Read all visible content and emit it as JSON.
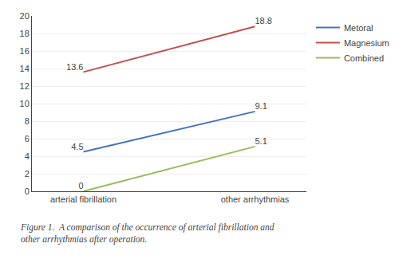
{
  "chart_data": {
    "type": "line",
    "title": "Figure 1.  A comparison of the occurrence of arterial fibrillation and\nother arrhythmias after operation.",
    "categories": [
      "arterial fibrillation",
      "other arrhythmias"
    ],
    "series": [
      {
        "name": "Metoral",
        "color": "#4472C4",
        "values": [
          4.5,
          9.1
        ]
      },
      {
        "name": "Magnesium",
        "color": "#C0504D",
        "values": [
          13.6,
          18.8
        ]
      },
      {
        "name": "Combined",
        "color": "#9BBB59",
        "values": [
          0,
          5.1
        ]
      }
    ],
    "ylim": [
      0,
      20
    ],
    "yticks": [
      0,
      2,
      4,
      6,
      8,
      10,
      12,
      14,
      16,
      18,
      20
    ],
    "grid": true,
    "legend": "right",
    "data_labels": true
  }
}
